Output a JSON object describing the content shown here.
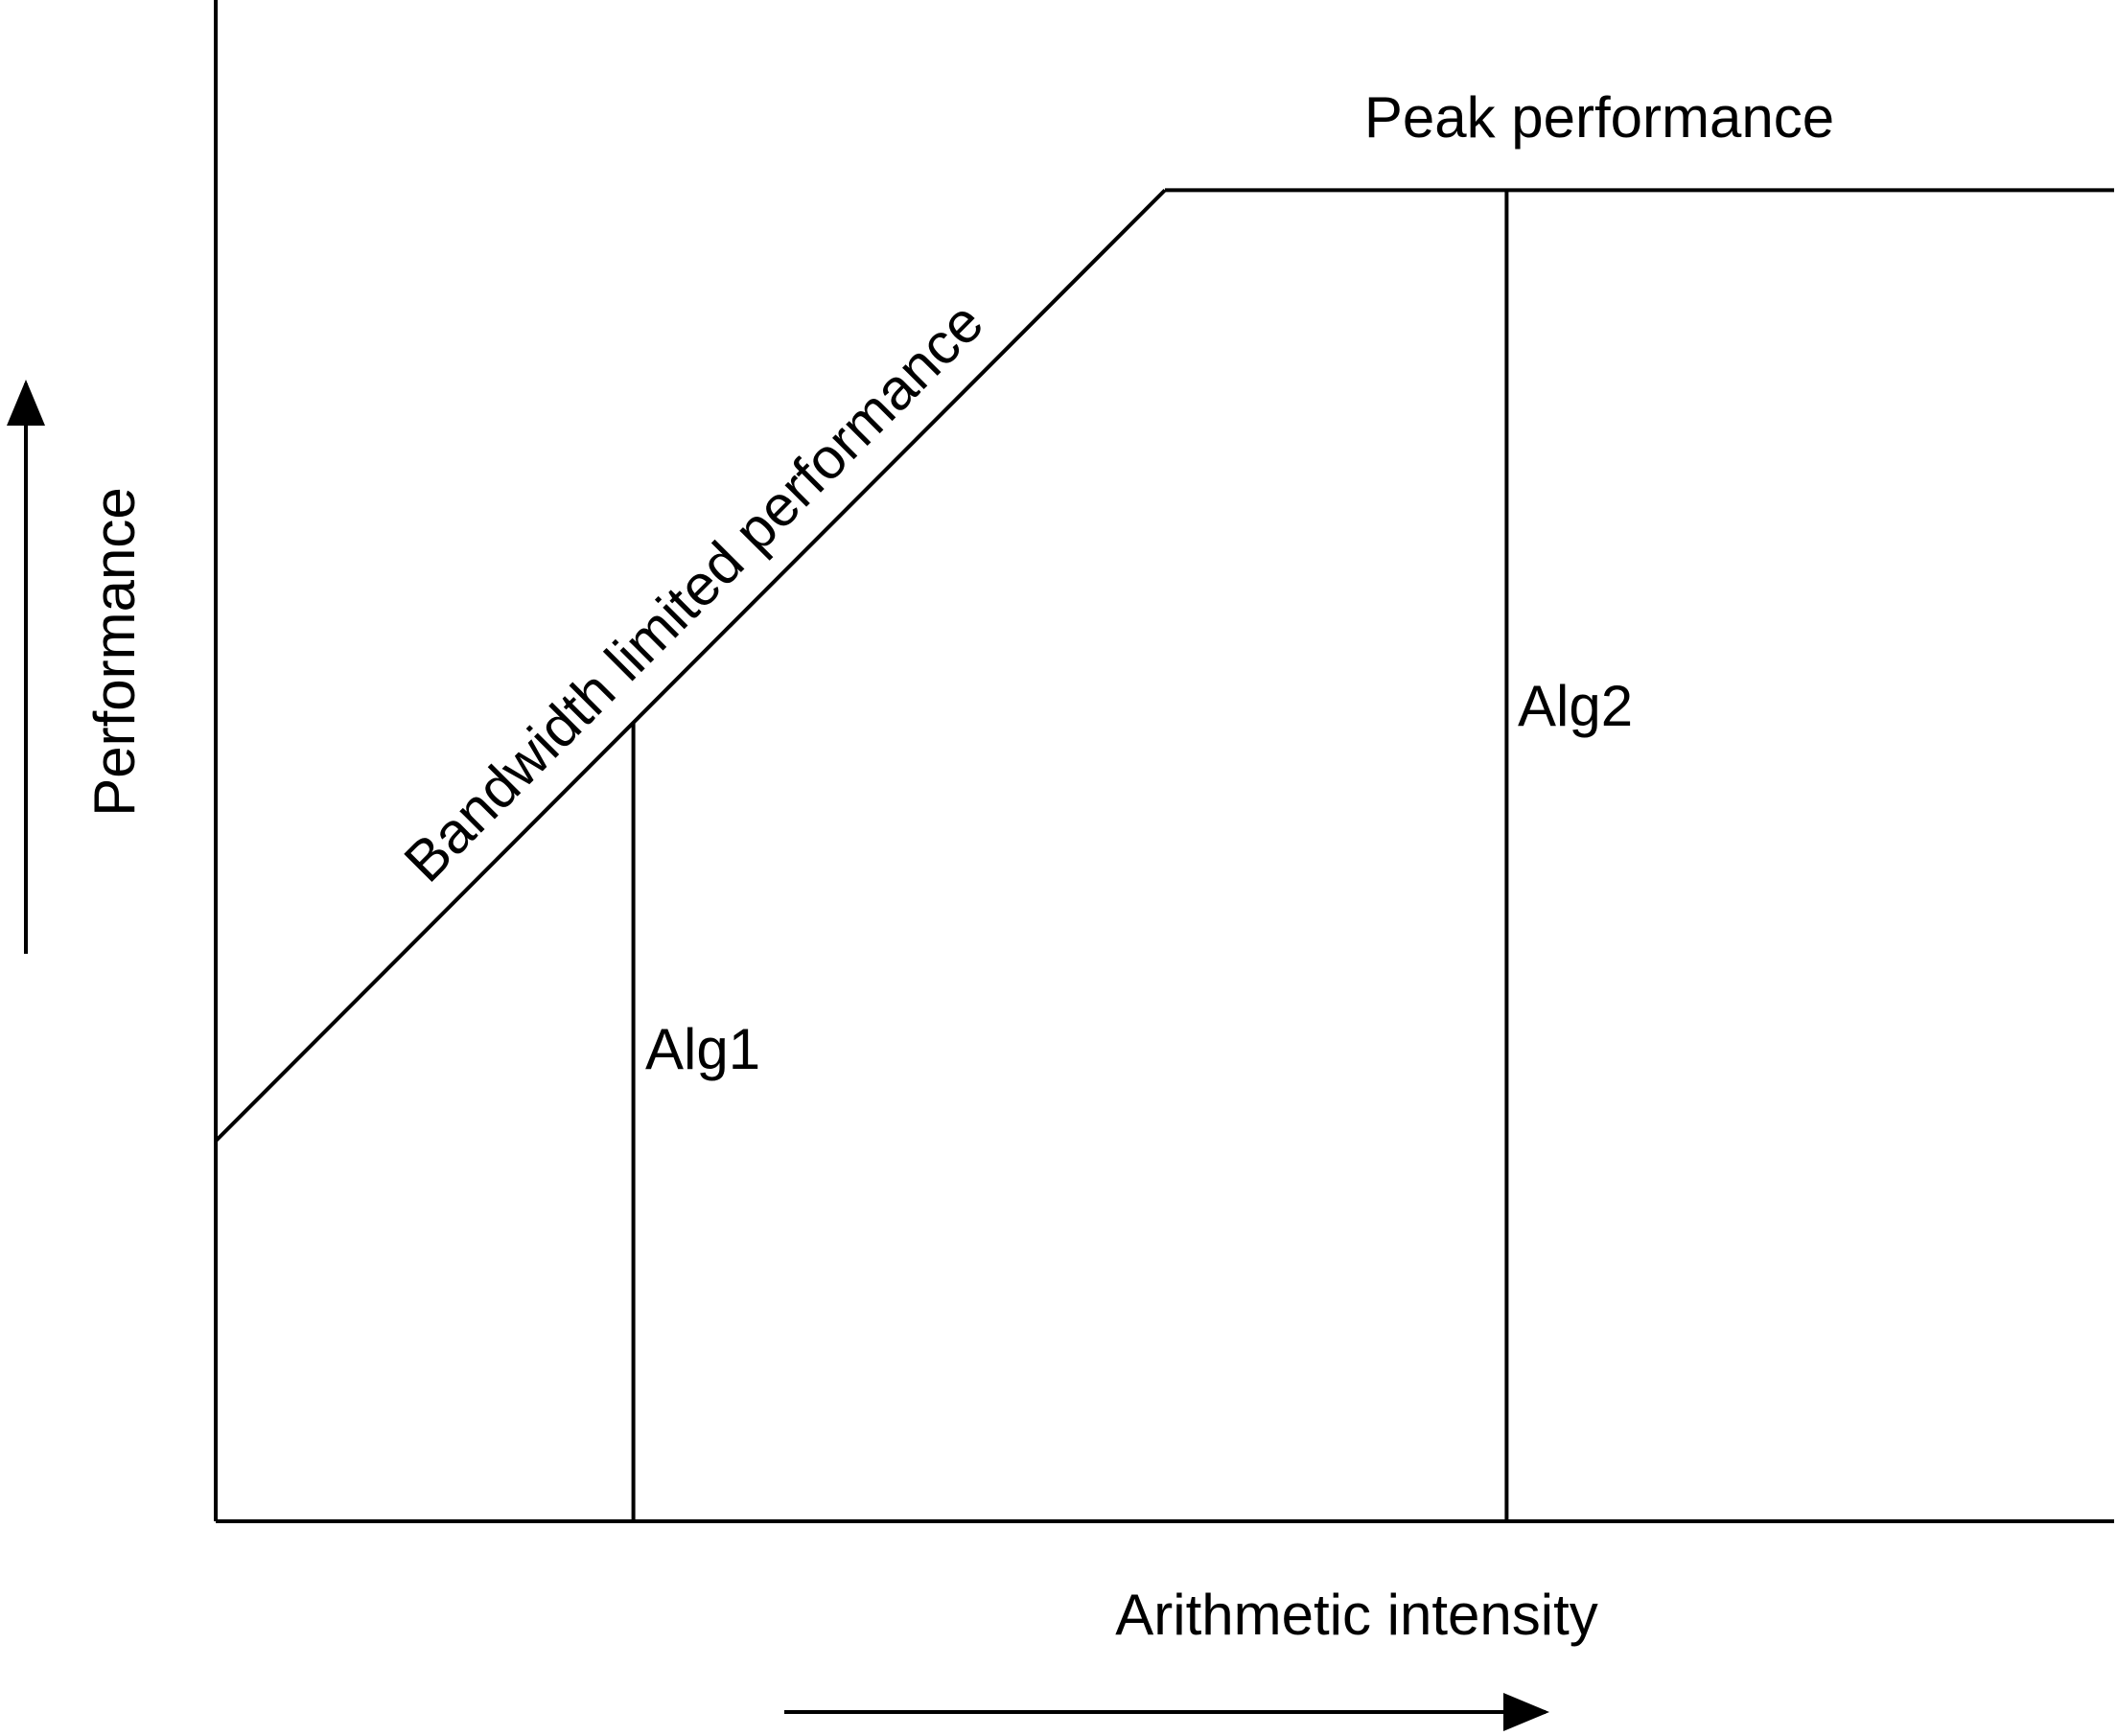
{
  "chart_data": {
    "type": "line",
    "xlabel": "Arithmetic intensity",
    "ylabel": "Performance",
    "grid": false,
    "legend": "none",
    "axes": {
      "x_arrow": true,
      "y_arrow": true,
      "ticks": false
    },
    "series": [
      {
        "name": "Bandwidth limited performance",
        "x": [
          0,
          0.5
        ],
        "y": [
          0.25,
          0.875
        ]
      },
      {
        "name": "Peak performance",
        "x": [
          0.5,
          1.0
        ],
        "y": [
          0.875,
          0.875
        ]
      }
    ],
    "markers": [
      {
        "label": "Alg1",
        "x": 0.22,
        "y": 0.525
      },
      {
        "label": "Alg2",
        "x": 0.68,
        "y": 0.875
      }
    ],
    "xlim": [
      0,
      1
    ],
    "ylim": [
      0,
      1
    ],
    "colors": {
      "line": "#000000",
      "background": "#ffffff"
    }
  }
}
